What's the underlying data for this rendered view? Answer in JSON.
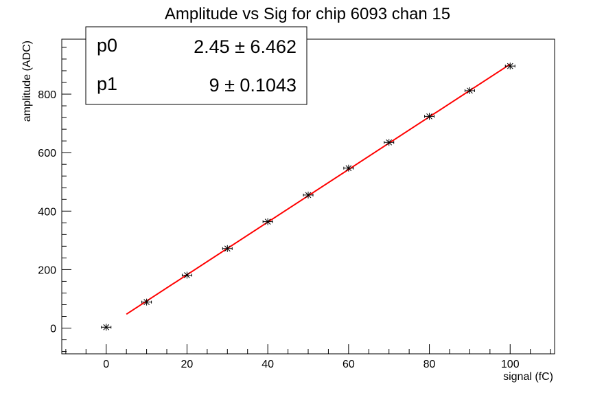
{
  "chart_data": {
    "type": "scatter",
    "title": "Amplitude vs Sig for chip 6093 chan 15",
    "xlabel": "signal (fC)",
    "ylabel": "amplitude (ADC)",
    "xlim": [
      -11,
      111
    ],
    "ylim": [
      -88,
      988
    ],
    "x_ticks": [
      0,
      20,
      40,
      60,
      80,
      100
    ],
    "y_ticks": [
      0,
      200,
      400,
      600,
      800
    ],
    "grid": false,
    "legend": "none",
    "series": [
      {
        "x": [
          0,
          10,
          20,
          30,
          40,
          50,
          60,
          70,
          80,
          90,
          100
        ],
        "y": [
          3,
          89,
          181,
          272,
          364,
          455,
          547,
          635,
          724,
          812,
          896
        ],
        "color": "#000000",
        "marker": "star"
      }
    ],
    "fit": {
      "color": "#ff0000",
      "x_range": [
        5,
        100
      ],
      "p0_value": 2.45,
      "p1_value": 9
    },
    "stats_box": {
      "position": "top-left",
      "rows": [
        {
          "name": "p0",
          "value": "2.45 ± 6.462"
        },
        {
          "name": "p1",
          "value": "9 ± 0.1043"
        }
      ]
    }
  }
}
